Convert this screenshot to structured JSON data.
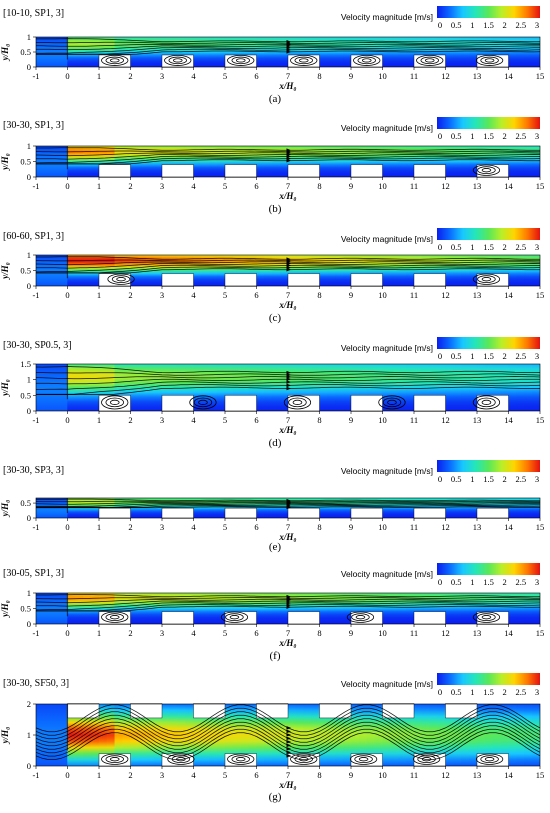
{
  "colors": {
    "colormap": [
      "#0a1ef0",
      "#0a6bff",
      "#18c8ff",
      "#25e6b8",
      "#58e85a",
      "#b8ee2a",
      "#ffd400",
      "#ff7a00",
      "#e51010"
    ],
    "solid": "#ffffff",
    "background": "#ffffff"
  },
  "chart_data": [
    {
      "type": "heatmap",
      "title": "[10-10, SP1, 3]",
      "caption": "(a)",
      "xlabel": "x/H₀",
      "ylabel": "y/H₀",
      "xlim": [
        -1,
        15
      ],
      "ylim": [
        0,
        1
      ],
      "yticks": [
        "0",
        "0.5",
        "1"
      ],
      "colorbar": {
        "label": "Velocity magnitude [m/s]",
        "ticks": [
          "0",
          "0.5",
          "1",
          "1.5",
          "2",
          "2.5",
          "3"
        ],
        "range": [
          0,
          3
        ]
      },
      "obstacles": {
        "starts": [
          1,
          3,
          5,
          7,
          9,
          11,
          13
        ],
        "width": 1,
        "height": 0.4
      },
      "jet_max": 1.6,
      "jet_level": 0.78,
      "vortex_positions": [
        1.5,
        3.5,
        5.5,
        7.5,
        9.5,
        11.5,
        13.4
      ]
    },
    {
      "type": "heatmap",
      "title": "[30-30, SP1, 3]",
      "caption": "(b)",
      "xlabel": "x/H₀",
      "ylabel": "y/H₀",
      "xlim": [
        -1,
        15
      ],
      "ylim": [
        0,
        1
      ],
      "yticks": [
        "0",
        "0.5",
        "1"
      ],
      "colorbar": {
        "label": "Velocity magnitude [m/s]",
        "ticks": [
          "0",
          "0.5",
          "1",
          "1.5",
          "2",
          "2.5",
          "3"
        ],
        "range": [
          0,
          3
        ]
      },
      "obstacles": {
        "starts": [
          1,
          3,
          5,
          7,
          9,
          11,
          13
        ],
        "width": 1,
        "height": 0.4
      },
      "jet_max": 2.3,
      "jet_level": 0.82,
      "vortex_positions": [
        13.3
      ]
    },
    {
      "type": "heatmap",
      "title": "[60-60, SP1, 3]",
      "caption": "(c)",
      "xlabel": "x/H₀",
      "ylabel": "y/H₀",
      "xlim": [
        -1,
        15
      ],
      "ylim": [
        0,
        1
      ],
      "yticks": [
        "0",
        "0.5",
        "1"
      ],
      "colorbar": {
        "label": "Velocity magnitude [m/s]",
        "ticks": [
          "0",
          "0.5",
          "1",
          "1.5",
          "2",
          "2.5",
          "3"
        ],
        "range": [
          0,
          3
        ]
      },
      "obstacles": {
        "starts": [
          1,
          3,
          5,
          7,
          9,
          11,
          13
        ],
        "width": 1,
        "height": 0.4
      },
      "jet_max": 3.0,
      "jet_level": 0.82,
      "vortex_positions": [
        1.7,
        13.3
      ]
    },
    {
      "type": "heatmap",
      "title": "[30-30, SP0.5, 3]",
      "caption": "(d)",
      "xlabel": "x/H₀",
      "ylabel": "y/H₀",
      "xlim": [
        -1,
        15
      ],
      "ylim": [
        0,
        1.5
      ],
      "yticks": [
        "0",
        "0.5",
        "1",
        "1.5"
      ],
      "colorbar": {
        "label": "Velocity magnitude [m/s]",
        "ticks": [
          "0",
          "0.5",
          "1",
          "1.5",
          "2",
          "2.5",
          "3"
        ],
        "range": [
          0,
          3
        ]
      },
      "obstacles": {
        "starts": [
          1,
          3,
          5,
          7,
          9,
          11,
          13
        ],
        "width": 1,
        "height": 0.5
      },
      "jet_max": 1.9,
      "jet_level": 1.1,
      "vortex_positions": [
        1.5,
        4.3,
        7.3,
        10.3,
        13.3
      ]
    },
    {
      "type": "heatmap",
      "title": "[30-30, SP3, 3]",
      "caption": "(e)",
      "xlabel": "x/H₀",
      "ylabel": "y/H₀",
      "xlim": [
        -1,
        15
      ],
      "ylim": [
        0,
        0.67
      ],
      "yticks": [
        "0",
        "0.5"
      ],
      "colorbar": {
        "label": "Velocity magnitude [m/s]",
        "ticks": [
          "0",
          "0.5",
          "1",
          "1.5",
          "2",
          "2.5",
          "3"
        ],
        "range": [
          0,
          3
        ]
      },
      "obstacles": {
        "starts": [
          1,
          3,
          5,
          7,
          9,
          11,
          13
        ],
        "width": 1,
        "height": 0.33
      },
      "jet_max": 1.7,
      "jet_level": 0.55,
      "vortex_positions": []
    },
    {
      "type": "heatmap",
      "title": "[30-05, SP1, 3]",
      "caption": "(f)",
      "xlabel": "x/H₀",
      "ylabel": "y/H₀",
      "xlim": [
        -1,
        15
      ],
      "ylim": [
        0,
        1
      ],
      "yticks": [
        "0",
        "0.5",
        "1"
      ],
      "colorbar": {
        "label": "Velocity magnitude [m/s]",
        "ticks": [
          "0",
          "0.5",
          "1",
          "1.5",
          "2",
          "2.5",
          "3"
        ],
        "range": [
          0,
          3
        ]
      },
      "obstacles": {
        "starts": [
          1,
          3,
          5,
          7,
          9,
          11,
          13
        ],
        "width": 1,
        "height": 0.4
      },
      "jet_max": 2.2,
      "jet_level": 0.85,
      "vortex_positions": [
        1.5,
        5.3,
        9.3,
        13.3
      ]
    },
    {
      "type": "heatmap",
      "title": "[30-30, SF50, 3]",
      "caption": "(g)",
      "xlabel": "x/H₀",
      "ylabel": "y/H₀",
      "xlim": [
        -1,
        15
      ],
      "ylim": [
        0,
        2
      ],
      "yticks": [
        "0",
        "1",
        "2"
      ],
      "colorbar": {
        "label": "Velocity magnitude [m/s]",
        "ticks": [
          "0",
          "0.5",
          "1",
          "1.5",
          "2",
          "2.5",
          "3"
        ],
        "range": [
          0,
          3
        ]
      },
      "obstacles": {
        "starts": [
          1,
          3,
          5,
          7,
          9,
          11,
          13
        ],
        "width": 1,
        "height": 0.4,
        "top_starts": [
          0,
          2,
          4,
          6,
          8,
          10,
          12
        ],
        "top_height": 0.45
      },
      "jet_max": 2.6,
      "jet_level": 1.0,
      "vortex_positions": [
        1.5,
        3.6,
        5.5,
        7.5,
        9.4,
        11.4,
        13.4
      ]
    }
  ]
}
